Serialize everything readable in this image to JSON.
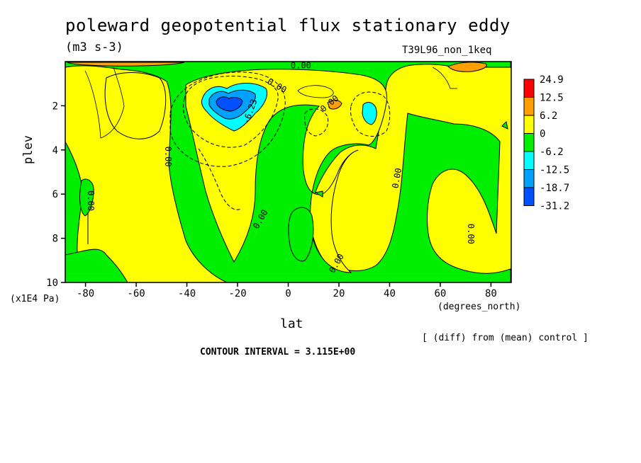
{
  "header": {
    "title": "poleward geopotential flux stationary eddy",
    "units": "(m3 s-3)",
    "run_label": "T39L96_non_1keq"
  },
  "footer": {
    "diff_note": "[ (diff) from (mean) control ]",
    "contour_interval": "CONTOUR INTERVAL = 3.115E+00"
  },
  "chart_data": {
    "type": "heatmap",
    "title": "poleward geopotential flux stationary eddy",
    "subtitle": "(m3 s-3)",
    "xlabel": "lat",
    "xunits": "(degrees_north)",
    "ylabel": "plev",
    "yunits": "(x1E4 Pa)",
    "xlim": [
      -88,
      88
    ],
    "ylim": [
      10,
      0
    ],
    "y_inverted": true,
    "x_ticks": [
      -80,
      -60,
      -40,
      -20,
      0,
      20,
      40,
      60,
      80
    ],
    "y_ticks": [
      2,
      4,
      6,
      8,
      10
    ],
    "colorbar": {
      "labels": [
        "24.9",
        "12.5",
        "6.2",
        "0",
        "-6.2",
        "-12.5",
        "-18.7",
        "-31.2"
      ],
      "colors": [
        "#ff0000",
        "#ffa000",
        "#ffff00",
        "#00ee00",
        "#00ffff",
        "#00a0ff",
        "#0050ff"
      ]
    },
    "contour_labels": [
      {
        "text": "0.00",
        "x": -79,
        "y": 6.3,
        "rotate": 90
      },
      {
        "text": "0.00",
        "x": -48.5,
        "y": 4.3,
        "rotate": 90
      },
      {
        "text": "-6.23",
        "x": -14,
        "y": 2.3,
        "rotate": -70
      },
      {
        "text": "0.00",
        "x": -5,
        "y": 1.2,
        "rotate": 30
      },
      {
        "text": "0.00",
        "x": 5,
        "y": 0.3,
        "rotate": 0
      },
      {
        "text": "0.00",
        "x": 17,
        "y": 2.0,
        "rotate": -40
      },
      {
        "text": "0.00",
        "x": -10,
        "y": 7.2,
        "rotate": -60
      },
      {
        "text": "0.00",
        "x": 20,
        "y": 9.2,
        "rotate": -60
      },
      {
        "text": "0.00",
        "x": 44,
        "y": 5.3,
        "rotate": -80
      },
      {
        "text": "0.00",
        "x": 71,
        "y": 7.8,
        "rotate": 90
      }
    ]
  }
}
